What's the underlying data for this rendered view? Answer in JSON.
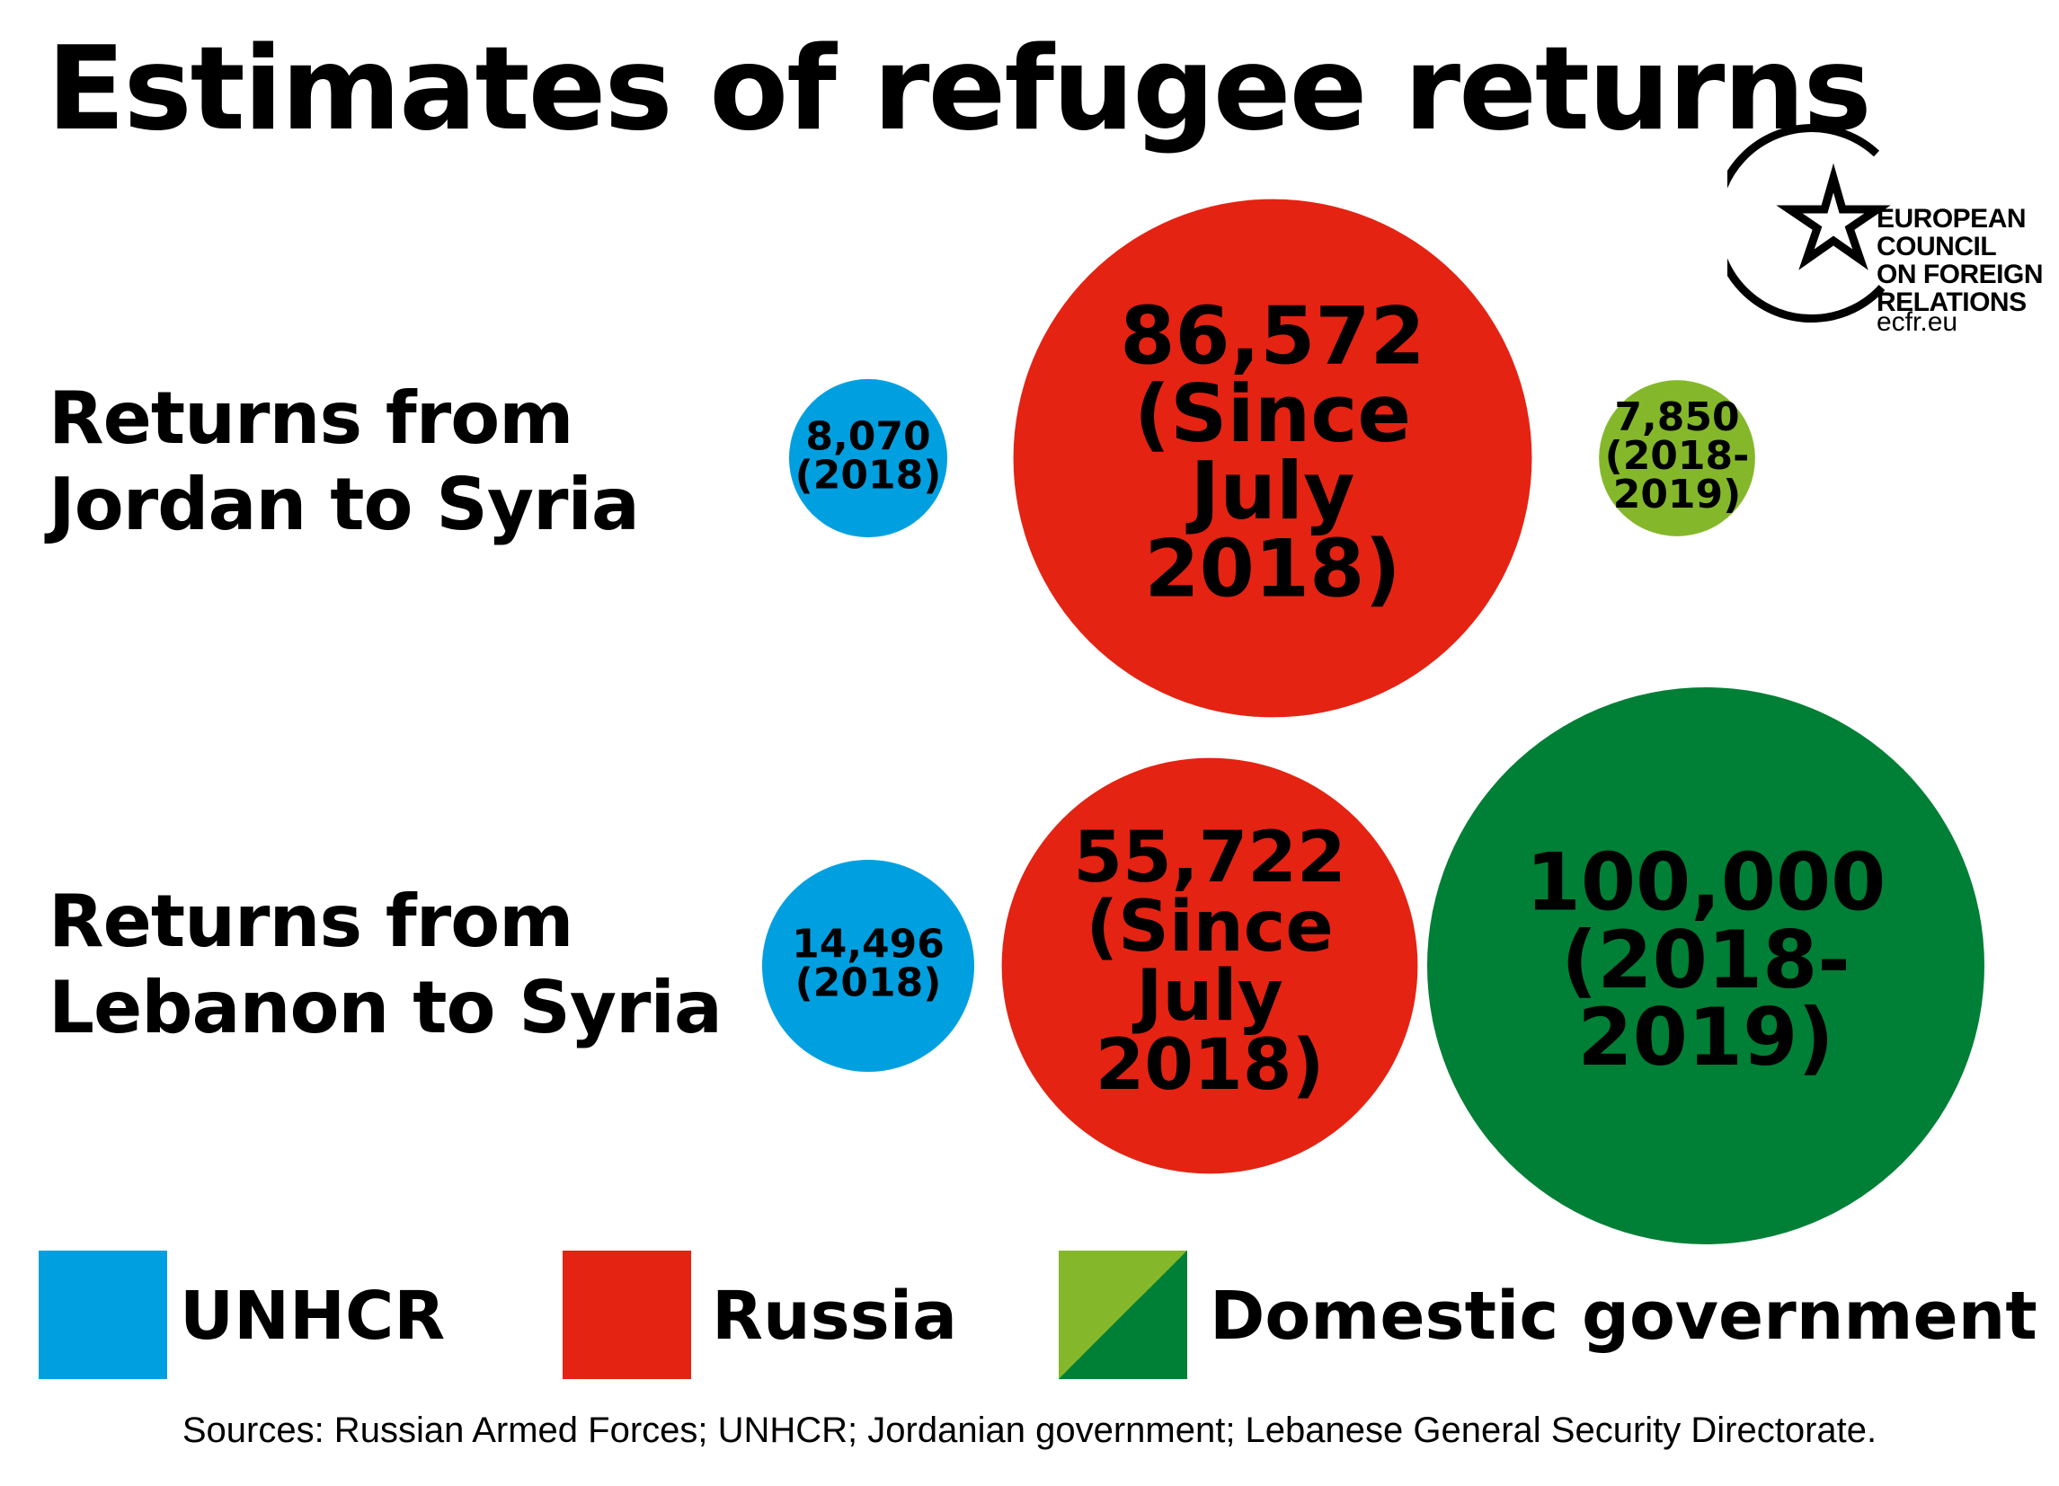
{
  "title": "Estimates of refugee returns",
  "logo": {
    "lines": [
      "EUROPEAN",
      "COUNCIL",
      "ON FOREIGN",
      "RELATIONS"
    ],
    "url": "ecfr.eu",
    "icon": "circle-star-icon"
  },
  "colors": {
    "unhcr": "#00a0e0",
    "russia": "#e42313",
    "domestic_light": "#84b82a",
    "domestic_dark": "#007f36"
  },
  "rows": [
    {
      "label_lines": [
        "Returns from",
        "Jordan to Syria"
      ]
    },
    {
      "label_lines": [
        "Returns from",
        "Lebanon to Syria"
      ]
    }
  ],
  "chart_data": {
    "type": "bubble",
    "title": "Estimates of refugee returns",
    "categories": [
      "Returns from Jordan to Syria",
      "Returns from Lebanon to Syria"
    ],
    "series": [
      {
        "name": "UNHCR",
        "color": "#00a0e0",
        "values": [
          8070,
          14496
        ],
        "labels": [
          [
            "8,070",
            "(2018)"
          ],
          [
            "14,496",
            "(2018)"
          ]
        ]
      },
      {
        "name": "Russia",
        "color": "#e42313",
        "values": [
          86572,
          55722
        ],
        "labels": [
          [
            "86,572",
            "(Since",
            "July",
            "2018)"
          ],
          [
            "55,722",
            "(Since",
            "July",
            "2018)"
          ]
        ]
      },
      {
        "name": "Domestic government",
        "colors": [
          "#84b82a",
          "#007f36"
        ],
        "values": [
          7850,
          100000
        ],
        "labels": [
          [
            "7,850",
            "(2018-",
            "2019)"
          ],
          [
            "100,000",
            "(2018-",
            "2019)"
          ]
        ]
      }
    ],
    "legend": {
      "placement": "bottom",
      "items": [
        {
          "label": "UNHCR",
          "color": "#00a0e0"
        },
        {
          "label": "Russia",
          "color": "#e42313"
        },
        {
          "label": "Domestic government",
          "colors": [
            "#84b82a",
            "#007f36"
          ]
        }
      ]
    }
  },
  "sources": "Sources: Russian Armed Forces; UNHCR; Jordanian government; Lebanese General Security Directorate."
}
